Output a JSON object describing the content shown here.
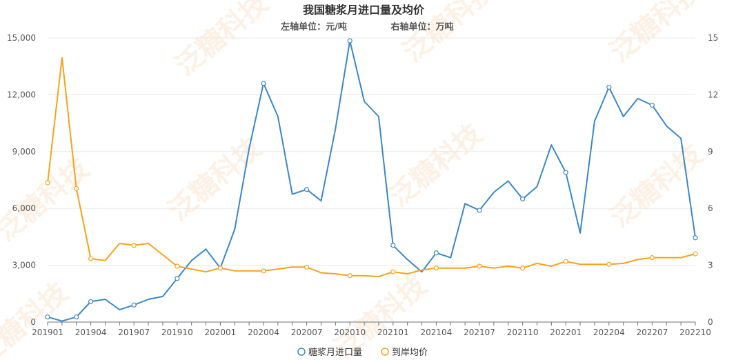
{
  "chart_data": {
    "type": "line",
    "title": "我国糖浆月进口量及均价",
    "subtitle_left": "左轴单位：元/吨",
    "subtitle_right": "右轴单位：万吨",
    "watermark": "泛糖科技",
    "x": [
      "201901",
      "201902",
      "201903",
      "201904",
      "201905",
      "201906",
      "201907",
      "201908",
      "201909",
      "201910",
      "201911",
      "201912",
      "202001",
      "202002",
      "202003",
      "202004",
      "202005",
      "202006",
      "202007",
      "202008",
      "202009",
      "202010",
      "202011",
      "202012",
      "202101",
      "202102",
      "202103",
      "202104",
      "202105",
      "202106",
      "202107",
      "202108",
      "202109",
      "202110",
      "202111",
      "202112",
      "202201",
      "202202",
      "202203",
      "202204",
      "202205",
      "202206",
      "202207",
      "202208",
      "202209",
      "202210"
    ],
    "x_tick_labels": [
      "201901",
      "201904",
      "201907",
      "201910",
      "202001",
      "202004",
      "202007",
      "202010",
      "202101",
      "202104",
      "202107",
      "202110",
      "202201",
      "202204",
      "202207",
      "202210"
    ],
    "left_axis": {
      "ylim": [
        0,
        15000
      ],
      "ticks": [
        "0",
        "3,000",
        "6,000",
        "9,000",
        "12,000",
        "15,000"
      ],
      "tick_values": [
        0,
        3000,
        6000,
        9000,
        12000,
        15000
      ]
    },
    "right_axis": {
      "ylim": [
        0,
        15
      ],
      "ticks": [
        "0",
        "3",
        "6",
        "9",
        "12",
        "15"
      ],
      "tick_values": [
        0,
        3,
        6,
        9,
        12,
        15
      ]
    },
    "grid": true,
    "legend_position": "bottom",
    "series": [
      {
        "name": "糖浆月进口量",
        "axis": "right",
        "color": "#3a87c8",
        "values": [
          0.27,
          0.05,
          0.27,
          1.08,
          1.2,
          0.65,
          0.9,
          1.2,
          1.35,
          2.3,
          3.25,
          3.85,
          2.85,
          4.9,
          9.15,
          12.6,
          10.85,
          6.75,
          7.0,
          6.4,
          10.2,
          14.85,
          11.65,
          10.85,
          4.05,
          3.3,
          2.65,
          3.65,
          3.4,
          6.25,
          5.9,
          6.85,
          7.45,
          6.5,
          7.15,
          9.35,
          7.9,
          4.7,
          10.6,
          12.4,
          10.85,
          11.8,
          11.45,
          10.35,
          9.7,
          4.45
        ]
      },
      {
        "name": "到岸均价",
        "axis": "left",
        "color": "#f7a21b",
        "values": [
          7350,
          13950,
          7050,
          3350,
          3250,
          4150,
          4050,
          4150,
          3550,
          2950,
          2800,
          2650,
          2850,
          2700,
          2700,
          2700,
          2800,
          2900,
          2900,
          2600,
          2550,
          2450,
          2450,
          2400,
          2650,
          2550,
          2750,
          2850,
          2850,
          2850,
          2950,
          2850,
          2950,
          2850,
          3100,
          2950,
          3200,
          3050,
          3050,
          3050,
          3100,
          3300,
          3400,
          3400,
          3400,
          3600
        ]
      }
    ]
  }
}
